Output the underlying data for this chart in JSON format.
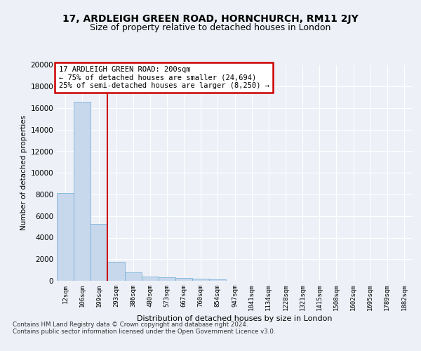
{
  "title": "17, ARDLEIGH GREEN ROAD, HORNCHURCH, RM11 2JY",
  "subtitle": "Size of property relative to detached houses in London",
  "xlabel": "Distribution of detached houses by size in London",
  "ylabel": "Number of detached properties",
  "annotation_title": "17 ARDLEIGH GREEN ROAD: 200sqm",
  "annotation_line1": "← 75% of detached houses are smaller (24,694)",
  "annotation_line2": "25% of semi-detached houses are larger (8,250) →",
  "footer_line1": "Contains HM Land Registry data © Crown copyright and database right 2024.",
  "footer_line2": "Contains public sector information licensed under the Open Government Licence v3.0.",
  "categories": [
    "12sqm",
    "106sqm",
    "199sqm",
    "293sqm",
    "386sqm",
    "480sqm",
    "573sqm",
    "667sqm",
    "760sqm",
    "854sqm",
    "947sqm",
    "1041sqm",
    "1134sqm",
    "1228sqm",
    "1321sqm",
    "1415sqm",
    "1508sqm",
    "1602sqm",
    "1695sqm",
    "1789sqm",
    "1882sqm"
  ],
  "values": [
    8100,
    16600,
    5300,
    1750,
    800,
    400,
    320,
    240,
    190,
    150,
    0,
    0,
    0,
    0,
    0,
    0,
    0,
    0,
    0,
    0,
    0
  ],
  "bar_color": "#c8d8ec",
  "bar_edge_color": "#6aaad4",
  "red_line_index": 2,
  "ylim": [
    0,
    20000
  ],
  "yticks": [
    0,
    2000,
    4000,
    6000,
    8000,
    10000,
    12000,
    14000,
    16000,
    18000,
    20000
  ],
  "background_color": "#edf1f7",
  "plot_bg_color": "#edf1f7",
  "grid_color": "#ffffff",
  "annotation_box_color": "#ffffff",
  "annotation_box_edge": "#cc0000"
}
